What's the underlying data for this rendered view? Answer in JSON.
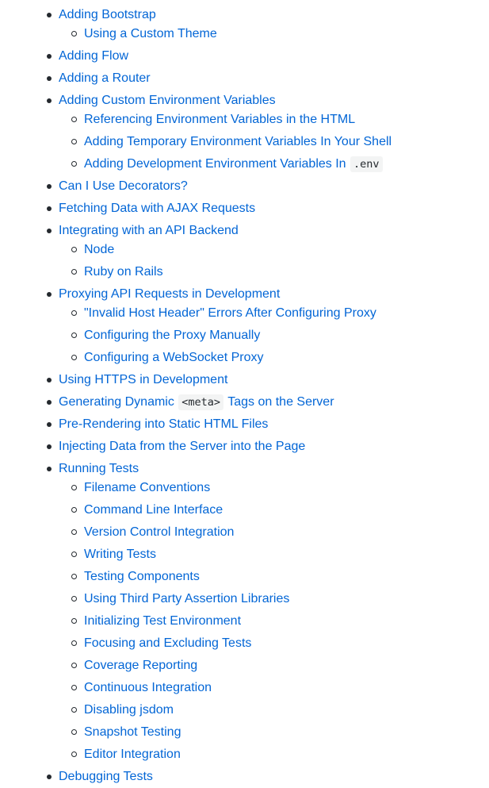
{
  "toc": {
    "items": [
      {
        "label": "Adding Bootstrap",
        "children": [
          {
            "label": "Using a Custom Theme"
          }
        ]
      },
      {
        "label": "Adding Flow"
      },
      {
        "label": "Adding a Router"
      },
      {
        "label": "Adding Custom Environment Variables",
        "children": [
          {
            "label": "Referencing Environment Variables in the HTML"
          },
          {
            "label": "Adding Temporary Environment Variables In Your Shell"
          },
          {
            "label": "Adding Development Environment Variables In ",
            "code": ".env"
          }
        ]
      },
      {
        "label": "Can I Use Decorators?"
      },
      {
        "label": "Fetching Data with AJAX Requests"
      },
      {
        "label": "Integrating with an API Backend",
        "children": [
          {
            "label": "Node"
          },
          {
            "label": "Ruby on Rails"
          }
        ]
      },
      {
        "label": "Proxying API Requests in Development",
        "children": [
          {
            "label": "\"Invalid Host Header\" Errors After Configuring Proxy"
          },
          {
            "label": "Configuring the Proxy Manually"
          },
          {
            "label": "Configuring a WebSocket Proxy"
          }
        ]
      },
      {
        "label": "Using HTTPS in Development"
      },
      {
        "label": "Generating Dynamic ",
        "code": "<meta>",
        "after": " Tags on the Server"
      },
      {
        "label": "Pre-Rendering into Static HTML Files"
      },
      {
        "label": "Injecting Data from the Server into the Page"
      },
      {
        "label": "Running Tests",
        "children": [
          {
            "label": "Filename Conventions"
          },
          {
            "label": "Command Line Interface"
          },
          {
            "label": "Version Control Integration"
          },
          {
            "label": "Writing Tests"
          },
          {
            "label": "Testing Components"
          },
          {
            "label": "Using Third Party Assertion Libraries"
          },
          {
            "label": "Initializing Test Environment"
          },
          {
            "label": "Focusing and Excluding Tests"
          },
          {
            "label": "Coverage Reporting"
          },
          {
            "label": "Continuous Integration"
          },
          {
            "label": "Disabling jsdom"
          },
          {
            "label": "Snapshot Testing"
          },
          {
            "label": "Editor Integration"
          }
        ]
      },
      {
        "label": "Debugging Tests"
      }
    ]
  }
}
